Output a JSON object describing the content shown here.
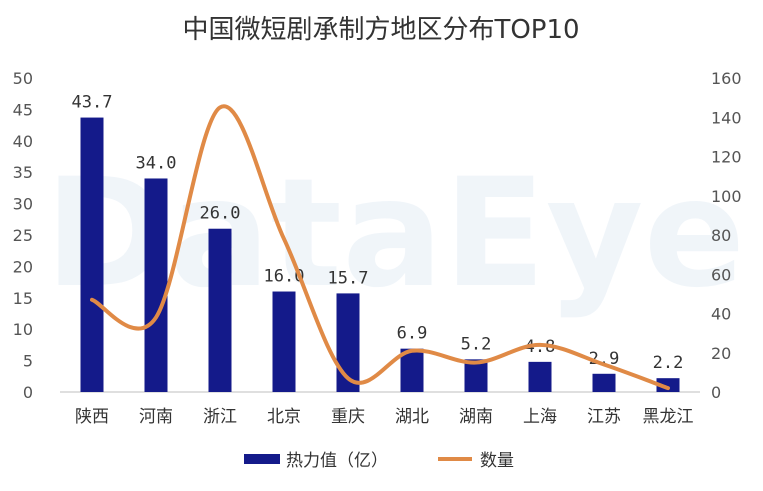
{
  "watermark": "DataEye",
  "colors": {
    "bar": "#141a8a",
    "line": "#e08a46",
    "axis": "#bfbfbf"
  },
  "chart_data": {
    "type": "bar",
    "title": "中国微短剧承制方地区分布TOP10",
    "categories": [
      "陕西",
      "河南",
      "浙江",
      "北京",
      "重庆",
      "湖北",
      "湖南",
      "上海",
      "江苏",
      "黑龙江"
    ],
    "series": [
      {
        "name": "热力值（亿）",
        "type": "bar",
        "axis": "left",
        "values": [
          43.7,
          34.0,
          26.0,
          16.0,
          15.7,
          6.9,
          5.2,
          4.8,
          2.9,
          2.2
        ],
        "labels": [
          "43.7",
          "34.0",
          "26.0",
          "16.0",
          "15.7",
          "6.9",
          "5.2",
          "4.8",
          "2.9",
          "2.2"
        ]
      },
      {
        "name": "数量",
        "type": "line",
        "smooth": true,
        "axis": "right",
        "values": [
          47,
          38,
          145,
          78,
          7,
          21,
          15,
          24,
          14,
          2
        ]
      }
    ],
    "y_left": {
      "min": 0,
      "max": 50,
      "ticks": [
        "0",
        "5",
        "10",
        "15",
        "20",
        "25",
        "30",
        "35",
        "40",
        "45",
        "50"
      ]
    },
    "y_right": {
      "min": 0,
      "max": 160,
      "ticks": [
        "0",
        "20",
        "40",
        "60",
        "80",
        "100",
        "120",
        "140",
        "160"
      ]
    },
    "grid": false,
    "legend_position": "bottom"
  }
}
